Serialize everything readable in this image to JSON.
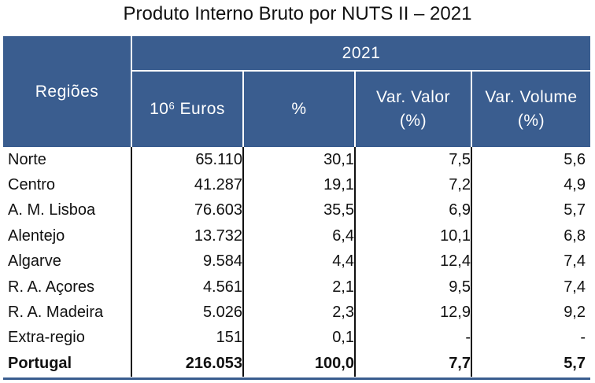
{
  "title": "Produto Interno Bruto por NUTS II – 2021",
  "header": {
    "regions_label": "Regiões",
    "year": "2021",
    "col1_base": "10",
    "col1_sup": "6",
    "col1_unit": " Euros",
    "col2": "%",
    "col3_line1": "Var. Valor",
    "col3_line2": "(%)",
    "col4_line1": "Var. Volume",
    "col4_line2": "(%)"
  },
  "rows": [
    {
      "region": "Norte",
      "euros": "65.110",
      "pct": "30,1",
      "var_valor": "7,5",
      "var_volume": "5,6"
    },
    {
      "region": "Centro",
      "euros": "41.287",
      "pct": "19,1",
      "var_valor": "7,2",
      "var_volume": "4,9"
    },
    {
      "region": "A. M. Lisboa",
      "euros": "76.603",
      "pct": "35,5",
      "var_valor": "6,9",
      "var_volume": "5,7"
    },
    {
      "region": "Alentejo",
      "euros": "13.732",
      "pct": "6,4",
      "var_valor": "10,1",
      "var_volume": "6,8"
    },
    {
      "region": "Algarve",
      "euros": "9.584",
      "pct": "4,4",
      "var_valor": "12,4",
      "var_volume": "7,4"
    },
    {
      "region": "R. A. Açores",
      "euros": "4.561",
      "pct": "2,1",
      "var_valor": "9,5",
      "var_volume": "7,4"
    },
    {
      "region": "R. A. Madeira",
      "euros": "5.026",
      "pct": "2,3",
      "var_valor": "12,9",
      "var_volume": "9,2"
    },
    {
      "region": "Extra-regio",
      "euros": "151",
      "pct": "0,1",
      "var_valor": "-",
      "var_volume": "-"
    }
  ],
  "total": {
    "region": "Portugal",
    "euros": "216.053",
    "pct": "100,0",
    "var_valor": "7,7",
    "var_volume": "5,7"
  },
  "colors": {
    "header_bg": "#3a5d8f",
    "header_text": "#ffffff",
    "body_text": "#111111"
  }
}
